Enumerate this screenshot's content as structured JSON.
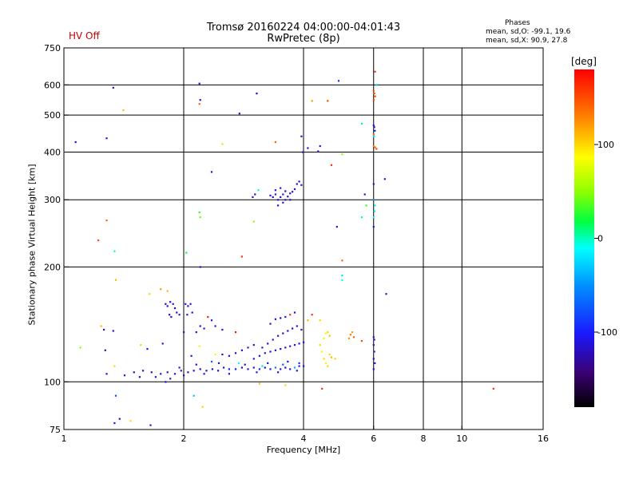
{
  "header": {
    "title_line1": "Tromsø 20160224 04:00:00-04:01:43",
    "title_line2": "RwPretec (8p)",
    "hv_status": "HV Off",
    "hv_status_color": "#cc0000"
  },
  "phase_stats": {
    "title": "Phases",
    "line_O": "mean, sd,O: -99.1, 19.6",
    "line_X": "mean, sd,X:  90.9, 27.8"
  },
  "colorbar": {
    "unit": "[deg]",
    "ticks": [
      {
        "value": 100,
        "label": "100"
      },
      {
        "value": 0,
        "label": "0"
      },
      {
        "value": -100,
        "label": "-100"
      }
    ],
    "range": [
      -180,
      180
    ]
  },
  "chart_data": {
    "type": "scatter",
    "title": "Tromsø 20160224 04:00:00-04:01:43",
    "subtitle": "RwPretec (8p)",
    "xlabel": "Frequency [MHz]",
    "ylabel": "Stationary phase Virtual Height [km]",
    "xscale": "log",
    "yscale": "log",
    "xlim": [
      1,
      16
    ],
    "ylim": [
      75,
      750
    ],
    "grid": true,
    "x_ticks": [
      {
        "value": 1,
        "label": "1"
      },
      {
        "value": 2,
        "label": "2"
      },
      {
        "value": 4,
        "label": "4"
      },
      {
        "value": 6,
        "label": "6"
      },
      {
        "value": 8,
        "label": "8"
      },
      {
        "value": 10,
        "label": "10"
      },
      {
        "value": 16,
        "label": "16"
      }
    ],
    "x_grid": [
      2,
      4,
      6,
      8,
      10
    ],
    "y_ticks": [
      {
        "value": 75,
        "label": "75"
      },
      {
        "value": 100,
        "label": "100"
      },
      {
        "value": 200,
        "label": "200"
      },
      {
        "value": 300,
        "label": "300"
      },
      {
        "value": 400,
        "label": "400"
      },
      {
        "value": 500,
        "label": "500"
      },
      {
        "value": 600,
        "label": "600"
      },
      {
        "value": 750,
        "label": "750"
      }
    ],
    "y_grid": [
      100,
      200,
      300,
      400,
      500,
      600
    ],
    "points": [
      {
        "f": 1.07,
        "h": 425,
        "p": -110
      },
      {
        "f": 1.28,
        "h": 435,
        "p": -110
      },
      {
        "f": 1.33,
        "h": 590,
        "p": -120
      },
      {
        "f": 1.41,
        "h": 515,
        "p": 110
      },
      {
        "f": 1.22,
        "h": 235,
        "p": 150
      },
      {
        "f": 1.28,
        "h": 265,
        "p": 140
      },
      {
        "f": 1.34,
        "h": 220,
        "p": 0
      },
      {
        "f": 1.35,
        "h": 185,
        "p": 110
      },
      {
        "f": 1.26,
        "h": 137,
        "p": -120
      },
      {
        "f": 1.33,
        "h": 136,
        "p": -110
      },
      {
        "f": 1.24,
        "h": 140,
        "p": 110
      },
      {
        "f": 1.1,
        "h": 123,
        "p": 50
      },
      {
        "f": 1.27,
        "h": 121,
        "p": -120
      },
      {
        "f": 1.34,
        "h": 110,
        "p": 100
      },
      {
        "f": 1.28,
        "h": 105,
        "p": -110
      },
      {
        "f": 1.35,
        "h": 92,
        "p": -80
      },
      {
        "f": 1.34,
        "h": 78,
        "p": -110
      },
      {
        "f": 1.38,
        "h": 80,
        "p": -110
      },
      {
        "f": 1.47,
        "h": 79,
        "p": 100
      },
      {
        "f": 1.65,
        "h": 77,
        "p": -110
      },
      {
        "f": 1.42,
        "h": 104,
        "p": -110
      },
      {
        "f": 1.5,
        "h": 106,
        "p": -120
      },
      {
        "f": 1.58,
        "h": 107,
        "p": -110
      },
      {
        "f": 1.66,
        "h": 106,
        "p": -120
      },
      {
        "f": 1.75,
        "h": 105,
        "p": -110
      },
      {
        "f": 1.82,
        "h": 106,
        "p": -120
      },
      {
        "f": 1.9,
        "h": 105,
        "p": -110
      },
      {
        "f": 1.97,
        "h": 107,
        "p": -100
      },
      {
        "f": 2.05,
        "h": 106,
        "p": -120
      },
      {
        "f": 2.12,
        "h": 107,
        "p": -110
      },
      {
        "f": 2.2,
        "h": 108,
        "p": -120
      },
      {
        "f": 2.28,
        "h": 107,
        "p": -110
      },
      {
        "f": 2.36,
        "h": 108,
        "p": -110
      },
      {
        "f": 2.44,
        "h": 107,
        "p": -120
      },
      {
        "f": 2.52,
        "h": 109,
        "p": -110
      },
      {
        "f": 2.6,
        "h": 108,
        "p": -100
      },
      {
        "f": 2.7,
        "h": 108,
        "p": -110
      },
      {
        "f": 2.8,
        "h": 109,
        "p": -120
      },
      {
        "f": 2.9,
        "h": 108,
        "p": -110
      },
      {
        "f": 3.0,
        "h": 109,
        "p": -110
      },
      {
        "f": 3.1,
        "h": 108,
        "p": -100
      },
      {
        "f": 3.2,
        "h": 109,
        "p": -120
      },
      {
        "f": 3.3,
        "h": 108,
        "p": -110
      },
      {
        "f": 3.4,
        "h": 109,
        "p": -60
      },
      {
        "f": 3.5,
        "h": 108,
        "p": -110
      },
      {
        "f": 3.6,
        "h": 109,
        "p": -120
      },
      {
        "f": 3.7,
        "h": 108,
        "p": -110
      },
      {
        "f": 3.8,
        "h": 109,
        "p": -40
      },
      {
        "f": 3.9,
        "h": 110,
        "p": -110
      },
      {
        "f": 4.0,
        "h": 110,
        "p": -110
      },
      {
        "f": 1.55,
        "h": 103,
        "p": -120
      },
      {
        "f": 1.7,
        "h": 103,
        "p": -110
      },
      {
        "f": 1.85,
        "h": 102,
        "p": -110
      },
      {
        "f": 2.0,
        "h": 104,
        "p": -120
      },
      {
        "f": 2.25,
        "h": 105,
        "p": -110
      },
      {
        "f": 2.6,
        "h": 105,
        "p": -120
      },
      {
        "f": 3.05,
        "h": 106,
        "p": -110
      },
      {
        "f": 3.45,
        "h": 106,
        "p": -110
      },
      {
        "f": 3.85,
        "h": 107,
        "p": -110
      },
      {
        "f": 1.8,
        "h": 100,
        "p": -110
      },
      {
        "f": 2.15,
        "h": 111,
        "p": -110
      },
      {
        "f": 2.45,
        "h": 112,
        "p": -110
      },
      {
        "f": 2.85,
        "h": 111,
        "p": -120
      },
      {
        "f": 3.25,
        "h": 112,
        "p": -110
      },
      {
        "f": 3.65,
        "h": 113,
        "p": -110
      },
      {
        "f": 2.75,
        "h": 112,
        "p": -10
      },
      {
        "f": 3.15,
        "h": 110,
        "p": -20
      },
      {
        "f": 3.55,
        "h": 111,
        "p": -70
      },
      {
        "f": 3.9,
        "h": 112,
        "p": -90
      },
      {
        "f": 2.35,
        "h": 113,
        "p": -70
      },
      {
        "f": 1.95,
        "h": 109,
        "p": -100
      },
      {
        "f": 3.0,
        "h": 115,
        "p": -110
      },
      {
        "f": 3.1,
        "h": 117,
        "p": -110
      },
      {
        "f": 3.2,
        "h": 119,
        "p": -110
      },
      {
        "f": 3.3,
        "h": 120,
        "p": -110
      },
      {
        "f": 3.4,
        "h": 121,
        "p": -110
      },
      {
        "f": 3.5,
        "h": 122,
        "p": -110
      },
      {
        "f": 3.6,
        "h": 123,
        "p": -110
      },
      {
        "f": 3.7,
        "h": 124,
        "p": -110
      },
      {
        "f": 3.8,
        "h": 125,
        "p": -110
      },
      {
        "f": 3.9,
        "h": 126,
        "p": -110
      },
      {
        "f": 4.0,
        "h": 127,
        "p": -110
      },
      {
        "f": 3.15,
        "h": 123,
        "p": -110
      },
      {
        "f": 3.25,
        "h": 126,
        "p": -120
      },
      {
        "f": 3.35,
        "h": 129,
        "p": -110
      },
      {
        "f": 3.45,
        "h": 132,
        "p": -110
      },
      {
        "f": 3.55,
        "h": 134,
        "p": -120
      },
      {
        "f": 3.65,
        "h": 136,
        "p": -110
      },
      {
        "f": 3.75,
        "h": 138,
        "p": -110
      },
      {
        "f": 3.85,
        "h": 140,
        "p": -110
      },
      {
        "f": 3.95,
        "h": 137,
        "p": -110
      },
      {
        "f": 3.3,
        "h": 142,
        "p": -110
      },
      {
        "f": 3.4,
        "h": 146,
        "p": -110
      },
      {
        "f": 3.5,
        "h": 147,
        "p": -120
      },
      {
        "f": 3.6,
        "h": 148,
        "p": -110
      },
      {
        "f": 3.7,
        "h": 150,
        "p": 160
      },
      {
        "f": 3.8,
        "h": 152,
        "p": -110
      },
      {
        "f": 2.7,
        "h": 119,
        "p": -110
      },
      {
        "f": 2.8,
        "h": 121,
        "p": -120
      },
      {
        "f": 2.9,
        "h": 123,
        "p": -110
      },
      {
        "f": 3.0,
        "h": 125,
        "p": -110
      },
      {
        "f": 2.6,
        "h": 117,
        "p": -110
      },
      {
        "f": 2.5,
        "h": 118,
        "p": -120
      },
      {
        "f": 1.8,
        "h": 160,
        "p": -110
      },
      {
        "f": 1.82,
        "h": 158,
        "p": -120
      },
      {
        "f": 1.85,
        "h": 162,
        "p": -110
      },
      {
        "f": 1.88,
        "h": 160,
        "p": -110
      },
      {
        "f": 1.9,
        "h": 156,
        "p": -120
      },
      {
        "f": 1.92,
        "h": 152,
        "p": -110
      },
      {
        "f": 1.95,
        "h": 150,
        "p": -110
      },
      {
        "f": 1.86,
        "h": 148,
        "p": -120
      },
      {
        "f": 1.84,
        "h": 150,
        "p": -110
      },
      {
        "f": 2.02,
        "h": 160,
        "p": -110
      },
      {
        "f": 2.05,
        "h": 158,
        "p": -120
      },
      {
        "f": 2.08,
        "h": 160,
        "p": -110
      },
      {
        "f": 2.1,
        "h": 152,
        "p": -110
      },
      {
        "f": 2.04,
        "h": 150,
        "p": -110
      },
      {
        "f": 2.3,
        "h": 148,
        "p": 170
      },
      {
        "f": 2.35,
        "h": 145,
        "p": -110
      },
      {
        "f": 2.4,
        "h": 140,
        "p": -110
      },
      {
        "f": 2.2,
        "h": 140,
        "p": -120
      },
      {
        "f": 2.25,
        "h": 138,
        "p": -110
      },
      {
        "f": 2.15,
        "h": 135,
        "p": -110
      },
      {
        "f": 2.5,
        "h": 137,
        "p": -110
      },
      {
        "f": 2.7,
        "h": 135,
        "p": 170
      },
      {
        "f": 2.0,
        "h": 135,
        "p": -110
      },
      {
        "f": 1.75,
        "h": 175,
        "p": 120
      },
      {
        "f": 1.82,
        "h": 173,
        "p": 110
      },
      {
        "f": 1.64,
        "h": 170,
        "p": 100
      },
      {
        "f": 1.56,
        "h": 125,
        "p": 100
      },
      {
        "f": 1.62,
        "h": 122,
        "p": -110
      },
      {
        "f": 1.77,
        "h": 126,
        "p": -110
      },
      {
        "f": 2.19,
        "h": 124,
        "p": 90
      },
      {
        "f": 2.09,
        "h": 117,
        "p": -110
      },
      {
        "f": 2.12,
        "h": 92,
        "p": -30
      },
      {
        "f": 2.23,
        "h": 86,
        "p": 100
      },
      {
        "f": 2.4,
        "h": 118,
        "p": 80
      },
      {
        "f": 3.1,
        "h": 99,
        "p": 110
      },
      {
        "f": 3.6,
        "h": 98,
        "p": 100
      },
      {
        "f": 2.19,
        "h": 605,
        "p": -110
      },
      {
        "f": 2.2,
        "h": 548,
        "p": -120
      },
      {
        "f": 2.19,
        "h": 535,
        "p": 140
      },
      {
        "f": 2.76,
        "h": 505,
        "p": -120
      },
      {
        "f": 3.05,
        "h": 570,
        "p": -120
      },
      {
        "f": 2.5,
        "h": 420,
        "p": 60
      },
      {
        "f": 2.35,
        "h": 355,
        "p": -110
      },
      {
        "f": 2.19,
        "h": 278,
        "p": 30
      },
      {
        "f": 2.2,
        "h": 270,
        "p": 40
      },
      {
        "f": 2.8,
        "h": 213,
        "p": 160
      },
      {
        "f": 2.2,
        "h": 200,
        "p": -110
      },
      {
        "f": 2.03,
        "h": 218,
        "p": 20
      },
      {
        "f": 2.98,
        "h": 305,
        "p": -110
      },
      {
        "f": 3.02,
        "h": 310,
        "p": -120
      },
      {
        "f": 3.08,
        "h": 318,
        "p": 0
      },
      {
        "f": 3.0,
        "h": 263,
        "p": 50
      },
      {
        "f": 3.4,
        "h": 425,
        "p": 140
      },
      {
        "f": 3.3,
        "h": 308,
        "p": -110
      },
      {
        "f": 3.35,
        "h": 305,
        "p": -120
      },
      {
        "f": 3.4,
        "h": 310,
        "p": -110
      },
      {
        "f": 3.45,
        "h": 300,
        "p": -110
      },
      {
        "f": 3.5,
        "h": 305,
        "p": -120
      },
      {
        "f": 3.55,
        "h": 310,
        "p": -110
      },
      {
        "f": 3.6,
        "h": 300,
        "p": -110
      },
      {
        "f": 3.65,
        "h": 306,
        "p": -120
      },
      {
        "f": 3.7,
        "h": 312,
        "p": -110
      },
      {
        "f": 3.4,
        "h": 318,
        "p": -110
      },
      {
        "f": 3.5,
        "h": 322,
        "p": -110
      },
      {
        "f": 3.6,
        "h": 316,
        "p": -120
      },
      {
        "f": 3.8,
        "h": 320,
        "p": -110
      },
      {
        "f": 3.85,
        "h": 330,
        "p": -110
      },
      {
        "f": 3.9,
        "h": 335,
        "p": -120
      },
      {
        "f": 3.95,
        "h": 328,
        "p": -110
      },
      {
        "f": 3.75,
        "h": 315,
        "p": -110
      },
      {
        "f": 3.45,
        "h": 290,
        "p": -110
      },
      {
        "f": 3.55,
        "h": 295,
        "p": -110
      },
      {
        "f": 3.7,
        "h": 300,
        "p": -120
      },
      {
        "f": 3.98,
        "h": 400,
        "p": -110
      },
      {
        "f": 3.95,
        "h": 440,
        "p": -110
      },
      {
        "f": 4.1,
        "h": 410,
        "p": -110
      },
      {
        "f": 4.35,
        "h": 402,
        "p": -110
      },
      {
        "f": 4.4,
        "h": 415,
        "p": -110
      },
      {
        "f": 4.2,
        "h": 545,
        "p": 120
      },
      {
        "f": 4.6,
        "h": 545,
        "p": 150
      },
      {
        "f": 4.9,
        "h": 615,
        "p": -90
      },
      {
        "f": 4.7,
        "h": 370,
        "p": 160
      },
      {
        "f": 4.85,
        "h": 255,
        "p": -110
      },
      {
        "f": 5.0,
        "h": 395,
        "p": 50
      },
      {
        "f": 5.0,
        "h": 208,
        "p": 140
      },
      {
        "f": 5.0,
        "h": 190,
        "p": -20
      },
      {
        "f": 5.0,
        "h": 185,
        "p": -10
      },
      {
        "f": 4.2,
        "h": 150,
        "p": 160
      },
      {
        "f": 4.1,
        "h": 145,
        "p": 110
      },
      {
        "f": 4.4,
        "h": 145,
        "p": 100
      },
      {
        "f": 4.6,
        "h": 135,
        "p": 100
      },
      {
        "f": 4.65,
        "h": 132,
        "p": 110
      },
      {
        "f": 4.5,
        "h": 130,
        "p": 80
      },
      {
        "f": 4.55,
        "h": 134,
        "p": 90
      },
      {
        "f": 4.4,
        "h": 125,
        "p": 100
      },
      {
        "f": 4.45,
        "h": 120,
        "p": 90
      },
      {
        "f": 4.5,
        "h": 115,
        "p": 100
      },
      {
        "f": 4.55,
        "h": 112,
        "p": 90
      },
      {
        "f": 4.6,
        "h": 110,
        "p": 100
      },
      {
        "f": 4.7,
        "h": 116,
        "p": 110
      },
      {
        "f": 4.8,
        "h": 115,
        "p": 100
      },
      {
        "f": 4.65,
        "h": 118,
        "p": 100
      },
      {
        "f": 5.2,
        "h": 130,
        "p": 120
      },
      {
        "f": 5.25,
        "h": 133,
        "p": 130
      },
      {
        "f": 5.3,
        "h": 135,
        "p": 120
      },
      {
        "f": 5.35,
        "h": 131,
        "p": 140
      },
      {
        "f": 5.6,
        "h": 128,
        "p": 150
      },
      {
        "f": 4.45,
        "h": 96,
        "p": 160
      },
      {
        "f": 5.6,
        "h": 475,
        "p": 10
      },
      {
        "f": 5.7,
        "h": 310,
        "p": -110
      },
      {
        "f": 5.75,
        "h": 290,
        "p": 30
      },
      {
        "f": 5.6,
        "h": 270,
        "p": 0
      },
      {
        "f": 6.05,
        "h": 650,
        "p": 160
      },
      {
        "f": 6.0,
        "h": 578,
        "p": 150
      },
      {
        "f": 6.02,
        "h": 570,
        "p": 150
      },
      {
        "f": 6.05,
        "h": 560,
        "p": 150
      },
      {
        "f": 6.0,
        "h": 548,
        "p": 155
      },
      {
        "f": 6.1,
        "h": 600,
        "p": -30
      },
      {
        "f": 6.0,
        "h": 470,
        "p": -110
      },
      {
        "f": 6.02,
        "h": 465,
        "p": -120
      },
      {
        "f": 6.04,
        "h": 455,
        "p": -110
      },
      {
        "f": 6.0,
        "h": 445,
        "p": 140
      },
      {
        "f": 6.02,
        "h": 440,
        "p": -10
      },
      {
        "f": 6.0,
        "h": 415,
        "p": 130
      },
      {
        "f": 6.05,
        "h": 412,
        "p": 140
      },
      {
        "f": 6.1,
        "h": 408,
        "p": 150
      },
      {
        "f": 6.0,
        "h": 330,
        "p": -110
      },
      {
        "f": 6.0,
        "h": 300,
        "p": -50
      },
      {
        "f": 6.05,
        "h": 290,
        "p": -10
      },
      {
        "f": 6.03,
        "h": 280,
        "p": -20
      },
      {
        "f": 6.0,
        "h": 270,
        "p": -10
      },
      {
        "f": 6.0,
        "h": 255,
        "p": -110
      },
      {
        "f": 6.4,
        "h": 340,
        "p": -110
      },
      {
        "f": 6.45,
        "h": 170,
        "p": -110
      },
      {
        "f": 6.0,
        "h": 131,
        "p": -110
      },
      {
        "f": 6.02,
        "h": 129,
        "p": -120
      },
      {
        "f": 6.0,
        "h": 125,
        "p": -110
      },
      {
        "f": 6.02,
        "h": 120,
        "p": -110
      },
      {
        "f": 6.0,
        "h": 115,
        "p": -120
      },
      {
        "f": 6.04,
        "h": 112,
        "p": -110
      },
      {
        "f": 6.0,
        "h": 108,
        "p": -110
      },
      {
        "f": 12.0,
        "h": 96,
        "p": 160
      }
    ]
  }
}
